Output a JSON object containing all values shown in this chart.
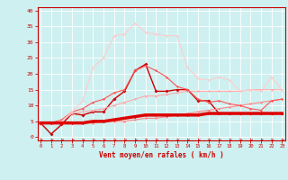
{
  "x": [
    0,
    1,
    2,
    3,
    4,
    5,
    6,
    7,
    8,
    9,
    10,
    11,
    12,
    13,
    14,
    15,
    16,
    17,
    18,
    19,
    20,
    21,
    22,
    23
  ],
  "lines": [
    {
      "y": [
        4.5,
        1,
        4,
        7.5,
        7,
        8,
        8,
        12,
        14.5,
        21,
        23,
        14.5,
        14.5,
        15,
        15,
        11.5,
        11.5,
        7.5,
        7.5,
        7.5,
        7.5,
        7.5,
        7.5,
        7.5
      ],
      "color": "#cc0000",
      "lw": 1.0,
      "marker": "D",
      "ms": 2.0
    },
    {
      "y": [
        4.5,
        4.5,
        4.5,
        4.5,
        4.5,
        4.5,
        5,
        5,
        5,
        5.5,
        6,
        6,
        6.5,
        7,
        7.5,
        8,
        8.5,
        9,
        9.5,
        10,
        10.5,
        11,
        11.5,
        12
      ],
      "color": "#ff8888",
      "lw": 0.8,
      "marker": "D",
      "ms": 1.5
    },
    {
      "y": [
        4.5,
        4.5,
        5,
        7.5,
        8,
        8.5,
        9,
        10,
        11,
        12,
        13,
        13,
        13.5,
        14,
        14.5,
        14.5,
        14.5,
        14.5,
        14.5,
        14.5,
        15,
        15,
        15,
        15
      ],
      "color": "#ffaaaa",
      "lw": 0.8,
      "marker": "D",
      "ms": 1.5
    },
    {
      "y": [
        4.5,
        4.5,
        5.5,
        8,
        9,
        11,
        12,
        14,
        15,
        21,
        22.5,
        21,
        19,
        16,
        15,
        12,
        11,
        11.5,
        10.5,
        10,
        9,
        8.5,
        11.5,
        12
      ],
      "color": "#ff5555",
      "lw": 0.8,
      "marker": "D",
      "ms": 1.5
    },
    {
      "y": [
        4.5,
        4.5,
        5,
        8,
        11.5,
        22,
        25,
        32,
        32.5,
        36,
        33,
        32.5,
        32,
        32,
        22,
        18.5,
        18,
        19,
        18,
        14.5,
        15,
        14.5,
        19,
        15
      ],
      "color": "#ffcccc",
      "lw": 0.8,
      "marker": "D",
      "ms": 1.5
    },
    {
      "y": [
        4.5,
        4.5,
        4.5,
        4.5,
        4.5,
        5,
        5,
        5.5,
        6,
        6.5,
        7,
        7,
        7,
        7,
        7,
        7,
        7.5,
        7.5,
        7.5,
        7.5,
        7.5,
        7.5,
        7.5,
        7.5
      ],
      "color": "#dd0000",
      "lw": 2.5,
      "marker": "D",
      "ms": 1.5
    }
  ],
  "xlim": [
    -0.3,
    23.3
  ],
  "ylim": [
    -1,
    41
  ],
  "yticks": [
    0,
    5,
    10,
    15,
    20,
    25,
    30,
    35,
    40
  ],
  "xticks": [
    0,
    1,
    2,
    3,
    4,
    5,
    6,
    7,
    8,
    9,
    10,
    11,
    12,
    13,
    14,
    15,
    16,
    17,
    18,
    19,
    20,
    21,
    22,
    23
  ],
  "xlabel": "Vent moyen/en rafales ( km/h )",
  "bg_color": "#cff0f0",
  "grid_color": "#ffffff",
  "axis_color": "#cc0000",
  "label_color": "#cc0000"
}
